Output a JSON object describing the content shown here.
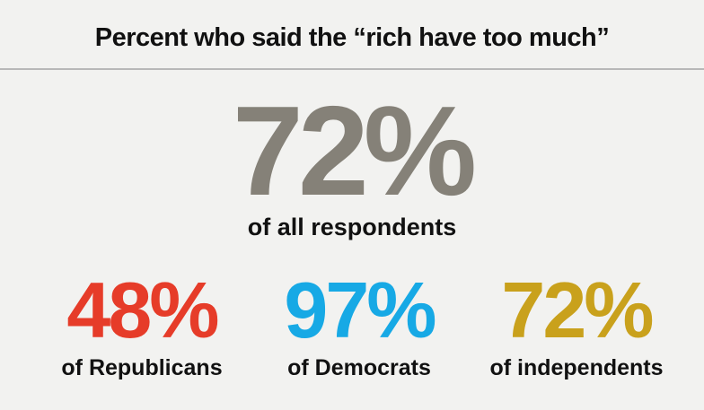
{
  "title": "Percent who said the “rich have too much”",
  "overall": {
    "value": "72%",
    "label": "of all respondents",
    "color": "#858178"
  },
  "groups": [
    {
      "value": "48%",
      "label": "of Republicans",
      "color": "#e63c29"
    },
    {
      "value": "97%",
      "label": "of Democrats",
      "color": "#17a9e5"
    },
    {
      "value": "72%",
      "label": "of independents",
      "color": "#c9a11c"
    }
  ]
}
